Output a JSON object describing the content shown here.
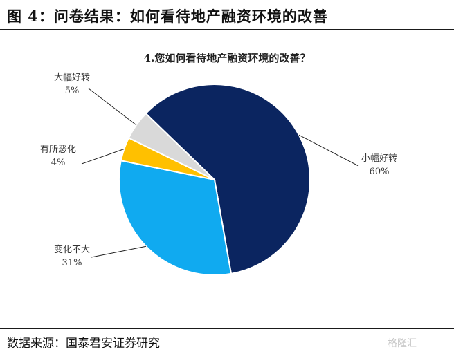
{
  "figure_title": "图 4：问卷结果：如何看待地产融资环境的改善",
  "source": "数据来源：国泰君安证券研究",
  "watermark": "格隆汇",
  "chart_data": {
    "type": "pie",
    "title": "4.您如何看待地产融资环境的改善？",
    "slices": [
      {
        "label": "小幅好转",
        "value": 60,
        "value_label": "60%",
        "color": "#0b2560"
      },
      {
        "label": "变化不大",
        "value": 31,
        "value_label": "31%",
        "color": "#10aaf0"
      },
      {
        "label": "有所恶化",
        "value": 4,
        "value_label": "4%",
        "color": "#ffc000"
      },
      {
        "label": "大幅好转",
        "value": 5,
        "value_label": "5%",
        "color": "#d9d9d9"
      }
    ]
  }
}
